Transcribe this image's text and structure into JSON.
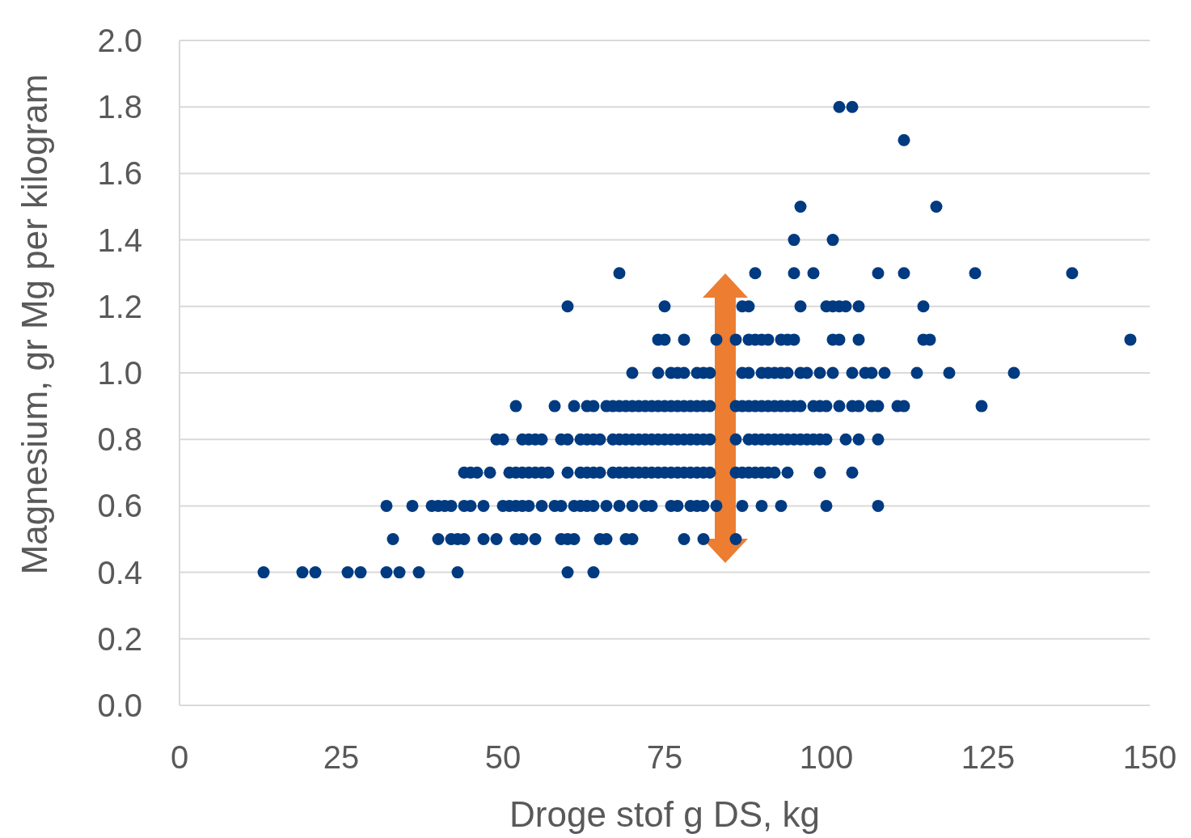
{
  "chart_data": {
    "type": "scatter",
    "xlabel": "Droge stof g DS, kg",
    "ylabel": "Magnesium, gr Mg per kilogram",
    "xlim": [
      0,
      150
    ],
    "xticks": [
      0,
      25,
      50,
      75,
      100,
      125,
      150
    ],
    "ylim": [
      0,
      2
    ],
    "yticks": [
      {
        "value": 0,
        "label": "0.0"
      },
      {
        "value": 0.2,
        "label": "0.2"
      },
      {
        "value": 0.4,
        "label": "0.4"
      },
      {
        "value": 0.6,
        "label": "0.6"
      },
      {
        "value": 0.8,
        "label": "0.8"
      },
      {
        "value": 1,
        "label": "1.0"
      },
      {
        "value": 1.2,
        "label": "1.2"
      },
      {
        "value": 1.4,
        "label": "1.4"
      },
      {
        "value": 1.6,
        "label": "1.6"
      },
      {
        "value": 1.8,
        "label": "1.8"
      },
      {
        "value": 2,
        "label": "2.0"
      }
    ],
    "grid": "y",
    "marker": "circle",
    "series": [
      {
        "color": "#003a80",
        "x": [
          13,
          19,
          21,
          26,
          28,
          32,
          34,
          37,
          43,
          60,
          64,
          33,
          40,
          42,
          43,
          44,
          47,
          49,
          52,
          53,
          55,
          59,
          60,
          61,
          65,
          66,
          69,
          70,
          78,
          81,
          86,
          32,
          36,
          39,
          40,
          41,
          42,
          44,
          45,
          47,
          50,
          51,
          52,
          53,
          54,
          56,
          58,
          59,
          61,
          62,
          63,
          64,
          66,
          68,
          70,
          72,
          73,
          76,
          77,
          79,
          80,
          81,
          83,
          87,
          90,
          93,
          100,
          108,
          44,
          45,
          46,
          48,
          51,
          52,
          53,
          54,
          55,
          56,
          57,
          60,
          62,
          63,
          64,
          65,
          67,
          68,
          69,
          70,
          71,
          72,
          73,
          74,
          75,
          76,
          77,
          78,
          79,
          80,
          81,
          82,
          86,
          87,
          88,
          89,
          90,
          91,
          92,
          94,
          99,
          104,
          49,
          50,
          53,
          54,
          55,
          56,
          59,
          60,
          62,
          63,
          64,
          65,
          67,
          68,
          69,
          70,
          71,
          72,
          73,
          74,
          75,
          76,
          77,
          78,
          79,
          80,
          81,
          82,
          86,
          88,
          89,
          90,
          91,
          92,
          93,
          94,
          95,
          96,
          97,
          98,
          99,
          100,
          103,
          105,
          108,
          52,
          58,
          61,
          63,
          64,
          66,
          67,
          68,
          69,
          70,
          71,
          72,
          73,
          74,
          75,
          76,
          77,
          78,
          79,
          80,
          81,
          82,
          86,
          87,
          88,
          89,
          90,
          91,
          92,
          93,
          94,
          95,
          96,
          98,
          99,
          100,
          102,
          104,
          105,
          107,
          108,
          111,
          112,
          124,
          70,
          74,
          76,
          77,
          78,
          80,
          81,
          82,
          87,
          88,
          90,
          91,
          92,
          93,
          94,
          96,
          97,
          99,
          101,
          104,
          106,
          107,
          109,
          114,
          119,
          129,
          74,
          75,
          78,
          83,
          86,
          88,
          89,
          90,
          91,
          93,
          94,
          95,
          101,
          102,
          105,
          115,
          116,
          147,
          60,
          75,
          87,
          88,
          96,
          100,
          101,
          102,
          103,
          105,
          115,
          68,
          89,
          95,
          98,
          108,
          112,
          123,
          138,
          95,
          101,
          96,
          117,
          112,
          102,
          104
        ],
        "values": [
          0.4,
          0.4,
          0.4,
          0.4,
          0.4,
          0.4,
          0.4,
          0.4,
          0.4,
          0.4,
          0.4,
          0.5,
          0.5,
          0.5,
          0.5,
          0.5,
          0.5,
          0.5,
          0.5,
          0.5,
          0.5,
          0.5,
          0.5,
          0.5,
          0.5,
          0.5,
          0.5,
          0.5,
          0.5,
          0.5,
          0.5,
          0.6,
          0.6,
          0.6,
          0.6,
          0.6,
          0.6,
          0.6,
          0.6,
          0.6,
          0.6,
          0.6,
          0.6,
          0.6,
          0.6,
          0.6,
          0.6,
          0.6,
          0.6,
          0.6,
          0.6,
          0.6,
          0.6,
          0.6,
          0.6,
          0.6,
          0.6,
          0.6,
          0.6,
          0.6,
          0.6,
          0.6,
          0.6,
          0.6,
          0.6,
          0.6,
          0.6,
          0.6,
          0.7,
          0.7,
          0.7,
          0.7,
          0.7,
          0.7,
          0.7,
          0.7,
          0.7,
          0.7,
          0.7,
          0.7,
          0.7,
          0.7,
          0.7,
          0.7,
          0.7,
          0.7,
          0.7,
          0.7,
          0.7,
          0.7,
          0.7,
          0.7,
          0.7,
          0.7,
          0.7,
          0.7,
          0.7,
          0.7,
          0.7,
          0.7,
          0.7,
          0.7,
          0.7,
          0.7,
          0.7,
          0.7,
          0.7,
          0.7,
          0.7,
          0.7,
          0.8,
          0.8,
          0.8,
          0.8,
          0.8,
          0.8,
          0.8,
          0.8,
          0.8,
          0.8,
          0.8,
          0.8,
          0.8,
          0.8,
          0.8,
          0.8,
          0.8,
          0.8,
          0.8,
          0.8,
          0.8,
          0.8,
          0.8,
          0.8,
          0.8,
          0.8,
          0.8,
          0.8,
          0.8,
          0.8,
          0.8,
          0.8,
          0.8,
          0.8,
          0.8,
          0.8,
          0.8,
          0.8,
          0.8,
          0.8,
          0.8,
          0.8,
          0.8,
          0.8,
          0.8,
          0.9,
          0.9,
          0.9,
          0.9,
          0.9,
          0.9,
          0.9,
          0.9,
          0.9,
          0.9,
          0.9,
          0.9,
          0.9,
          0.9,
          0.9,
          0.9,
          0.9,
          0.9,
          0.9,
          0.9,
          0.9,
          0.9,
          0.9,
          0.9,
          0.9,
          0.9,
          0.9,
          0.9,
          0.9,
          0.9,
          0.9,
          0.9,
          0.9,
          0.9,
          0.9,
          0.9,
          0.9,
          0.9,
          0.9,
          0.9,
          0.9,
          0.9,
          0.9,
          0.9,
          1.0,
          1.0,
          1.0,
          1.0,
          1.0,
          1.0,
          1.0,
          1.0,
          1.0,
          1.0,
          1.0,
          1.0,
          1.0,
          1.0,
          1.0,
          1.0,
          1.0,
          1.0,
          1.0,
          1.0,
          1.0,
          1.0,
          1.0,
          1.0,
          1.0,
          1.0,
          1.1,
          1.1,
          1.1,
          1.1,
          1.1,
          1.1,
          1.1,
          1.1,
          1.1,
          1.1,
          1.1,
          1.1,
          1.1,
          1.1,
          1.1,
          1.1,
          1.1,
          1.1,
          1.2,
          1.2,
          1.2,
          1.2,
          1.2,
          1.2,
          1.2,
          1.2,
          1.2,
          1.2,
          1.2,
          1.3,
          1.3,
          1.3,
          1.3,
          1.3,
          1.3,
          1.3,
          1.3,
          1.4,
          1.4,
          1.5,
          1.5,
          1.7,
          1.8,
          1.8
        ]
      }
    ]
  }
}
